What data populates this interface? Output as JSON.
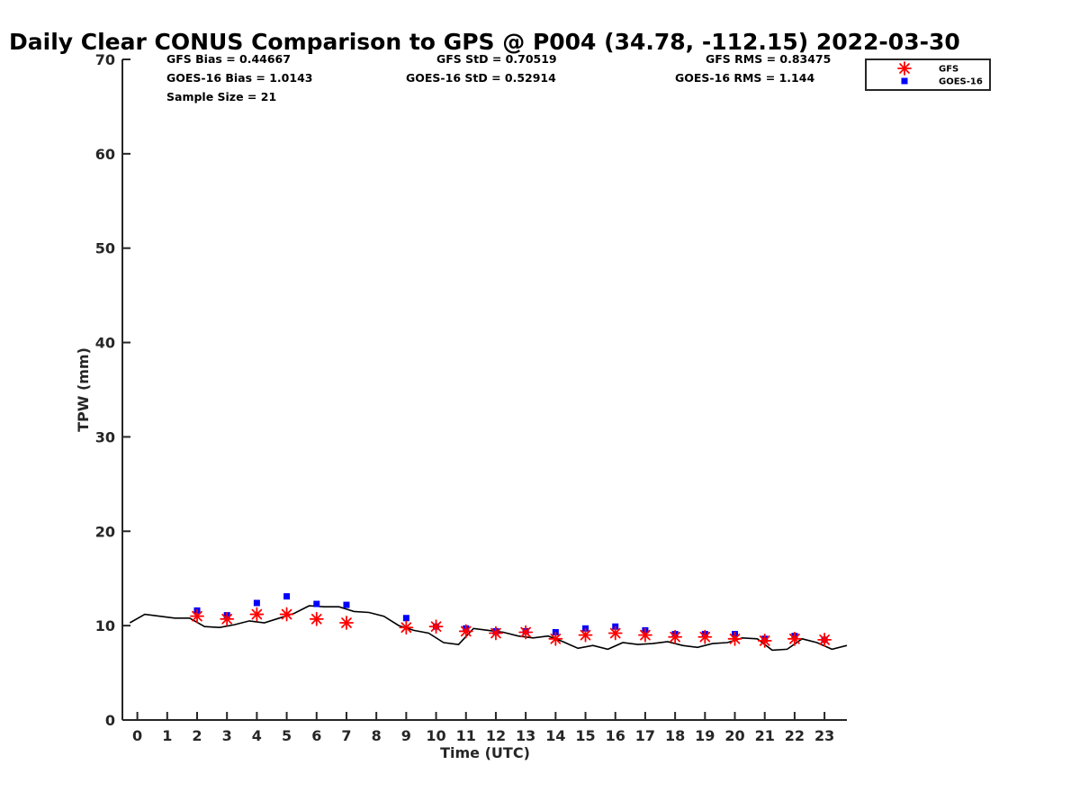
{
  "chart_data": {
    "type": "scatter",
    "title": "Daily Clear CONUS Comparison to GPS @ P004 (34.78, -112.15) 2022-03-30",
    "xlabel": "Time (UTC)",
    "ylabel": "TPW (mm)",
    "xlim": [
      -0.5,
      23.75
    ],
    "ylim": [
      0,
      70
    ],
    "x_ticks": [
      "0",
      "1",
      "2",
      "3",
      "4",
      "5",
      "6",
      "7",
      "8",
      "9",
      "10",
      "11",
      "12",
      "13",
      "14",
      "15",
      "16",
      "17",
      "18",
      "19",
      "20",
      "21",
      "22",
      "23"
    ],
    "y_ticks": [
      "0",
      "10",
      "20",
      "30",
      "40",
      "50",
      "60",
      "70"
    ],
    "grid": false,
    "legend_position": "top-right",
    "stats": [
      {
        "text": "GFS Bias = 0.44667"
      },
      {
        "text": "GFS StD = 0.70519"
      },
      {
        "text": "GFS RMS = 0.83475"
      },
      {
        "text": "GOES-16 Bias = 1.0143"
      },
      {
        "text": "GOES-16 StD = 0.52914"
      },
      {
        "text": "GOES-16 RMS = 1.144"
      },
      {
        "text": "Sample Size = 21"
      }
    ],
    "series": [
      {
        "name": "GFS",
        "marker": "asterisk",
        "color": "#ff0000",
        "x": [
          2,
          3,
          4,
          5,
          6,
          7,
          9,
          10,
          11,
          12,
          13,
          14,
          15,
          16,
          17,
          18,
          19,
          20,
          21,
          22,
          23
        ],
        "y": [
          11.0,
          10.7,
          11.2,
          11.2,
          10.7,
          10.3,
          9.8,
          9.9,
          9.4,
          9.2,
          9.3,
          8.6,
          9.0,
          9.2,
          9.0,
          8.8,
          8.8,
          8.6,
          8.4,
          8.6,
          8.5
        ]
      },
      {
        "name": "GOES-16",
        "marker": "square",
        "color": "#0000ff",
        "x": [
          2,
          3,
          4,
          5,
          6,
          7,
          9,
          10,
          11,
          12,
          13,
          14,
          15,
          16,
          17,
          18,
          19,
          20,
          21,
          22,
          23
        ],
        "y": [
          11.6,
          11.1,
          12.4,
          13.1,
          12.3,
          12.2,
          10.8,
          9.9,
          9.7,
          9.4,
          9.4,
          9.3,
          9.7,
          9.9,
          9.5,
          9.1,
          9.1,
          9.1,
          8.6,
          8.9,
          8.5
        ]
      },
      {
        "marker": "line",
        "color": "#000000",
        "x": [
          -0.25,
          0.25,
          0.75,
          1.25,
          1.75,
          2.25,
          2.75,
          3.25,
          3.75,
          4.25,
          4.75,
          5.25,
          5.75,
          6.25,
          6.75,
          7.25,
          7.75,
          8.25,
          8.75,
          9.25,
          9.75,
          10.25,
          10.75,
          11.25,
          11.75,
          12.25,
          12.75,
          13.25,
          13.75,
          14.25,
          14.75,
          15.25,
          15.75,
          16.25,
          16.75,
          17.25,
          17.75,
          18.25,
          18.75,
          19.25,
          19.75,
          20.25,
          20.75,
          21.25,
          21.75,
          22.25,
          22.75,
          23.25,
          23.75
        ],
        "y": [
          10.3,
          11.2,
          11.0,
          10.8,
          10.8,
          9.9,
          9.8,
          10.1,
          10.5,
          10.3,
          10.8,
          11.3,
          12.1,
          12.0,
          12.0,
          11.5,
          11.4,
          11.0,
          10.0,
          9.5,
          9.2,
          8.2,
          8.0,
          9.7,
          9.5,
          9.3,
          8.9,
          8.7,
          8.9,
          8.3,
          7.6,
          7.9,
          7.5,
          8.2,
          8.0,
          8.1,
          8.3,
          7.9,
          7.7,
          8.1,
          8.2,
          8.7,
          8.6,
          7.4,
          7.5,
          8.6,
          8.2,
          7.5,
          7.9
        ]
      }
    ]
  }
}
